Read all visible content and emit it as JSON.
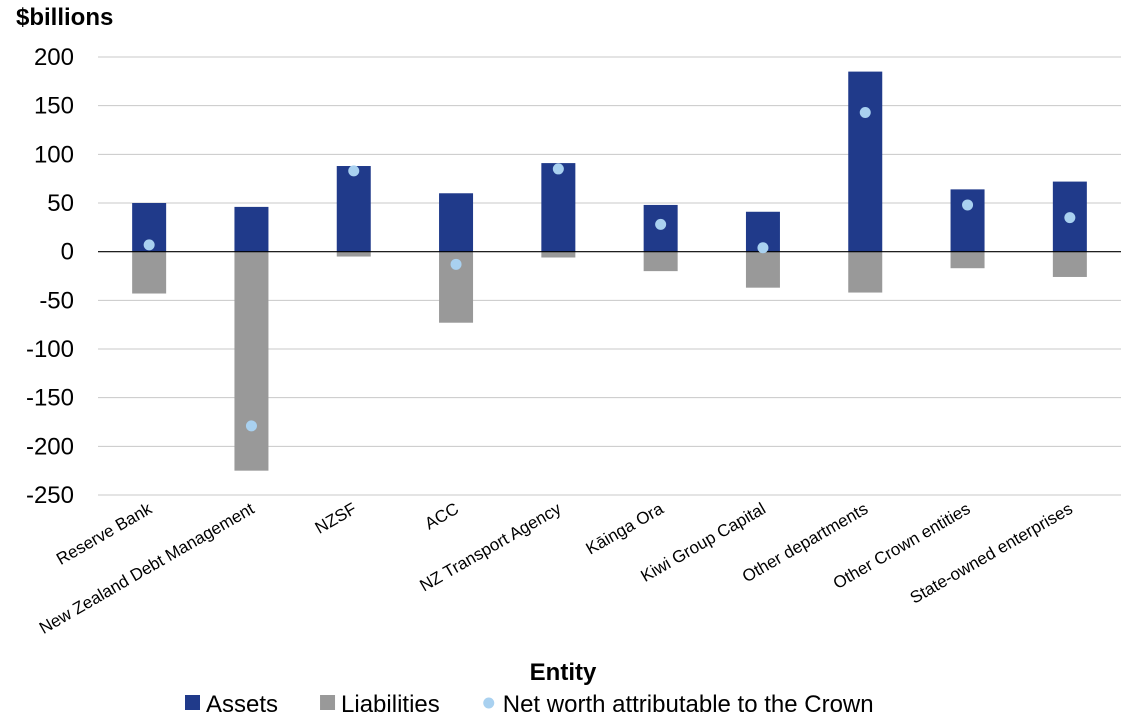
{
  "chart_data": {
    "type": "bar",
    "ylabel": "$billions",
    "xlabel": "Entity",
    "ylim": [
      -250,
      200
    ],
    "yticks": [
      200,
      150,
      100,
      50,
      0,
      -50,
      -100,
      -150,
      -200,
      -250
    ],
    "grid": true,
    "legend_position": "bottom",
    "categories": [
      "Reserve Bank",
      "New Zealand Debt Management",
      "NZSF",
      "ACC",
      "NZ Transport Agency",
      "Kāinga Ora",
      "Kiwi Group Capital",
      "Other departments",
      "Other Crown entities",
      "State-owned enterprises"
    ],
    "series": [
      {
        "name": "Assets",
        "kind": "bar",
        "color": "#203a8a",
        "values": [
          50,
          46,
          88,
          60,
          91,
          48,
          41,
          185,
          64,
          72
        ]
      },
      {
        "name": "Liabilities",
        "kind": "bar",
        "color": "#999999",
        "values": [
          -43,
          -225,
          -5,
          -73,
          -6,
          -20,
          -37,
          -42,
          -17,
          -26
        ]
      },
      {
        "name": "Net worth attributable to the Crown",
        "kind": "marker",
        "color": "#a9d1f0",
        "values": [
          7,
          -179,
          83,
          -13,
          85,
          28,
          4,
          143,
          48,
          35
        ]
      }
    ]
  }
}
